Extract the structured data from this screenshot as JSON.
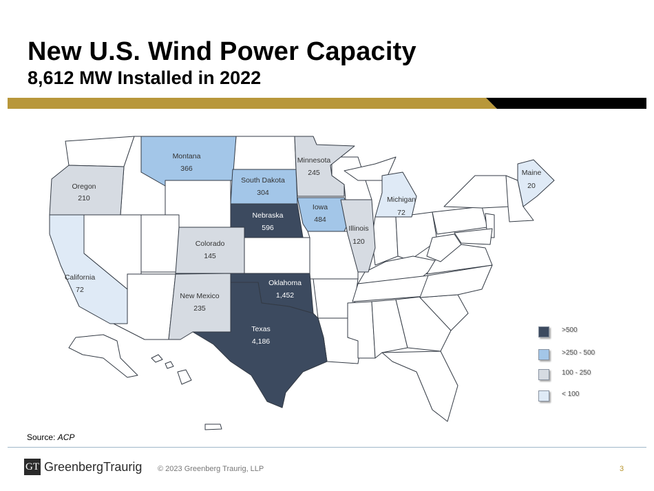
{
  "header": {
    "title": "New U.S. Wind Power Capacity",
    "subtitle": "8,612 MW Installed in 2022"
  },
  "colors": {
    "gold": "#b8973a",
    "black": "#000000",
    "tier_gt500": "#3c4a5f",
    "tier_250_500": "#a3c6e8",
    "tier_100_250": "#d6dbe2",
    "tier_lt100": "#dfeaf6",
    "no_data": "#ffffff"
  },
  "legend": [
    {
      "label": ">500",
      "color": "#3c4a5f"
    },
    {
      "label": ">250 - 500",
      "color": "#a3c6e8"
    },
    {
      "label": "100 - 250",
      "color": "#d6dbe2"
    },
    {
      "label": "< 100",
      "color": "#dfeaf6"
    }
  ],
  "states": {
    "montana": {
      "name": "Montana",
      "value": "366"
    },
    "oregon": {
      "name": "Oregon",
      "value": "210"
    },
    "california": {
      "name": "California",
      "value": "72"
    },
    "south_dakota": {
      "name": "South Dakota",
      "value": "304"
    },
    "minnesota": {
      "name": "Minnesota",
      "value": "245"
    },
    "nebraska": {
      "name": "Nebraska",
      "value": "596"
    },
    "iowa": {
      "name": "Iowa",
      "value": "484"
    },
    "colorado": {
      "name": "Colorado",
      "value": "145"
    },
    "illinois": {
      "name": "Illinois",
      "value": "120"
    },
    "michigan": {
      "name": "Michigan",
      "value": "72"
    },
    "maine": {
      "name": "Maine",
      "value": "20"
    },
    "oklahoma": {
      "name": "Oklahoma",
      "value": "1,452"
    },
    "new_mexico": {
      "name": "New Mexico",
      "value": "235"
    },
    "texas": {
      "name": "Texas",
      "value": "4,186"
    }
  },
  "footer": {
    "source_label": "Source: ",
    "source_value": "ACP",
    "logo_mark": "GT",
    "logo_text": "GreenbergTraurig",
    "copyright": "© 2023 Greenberg Traurig, LLP",
    "page_number": "3"
  }
}
